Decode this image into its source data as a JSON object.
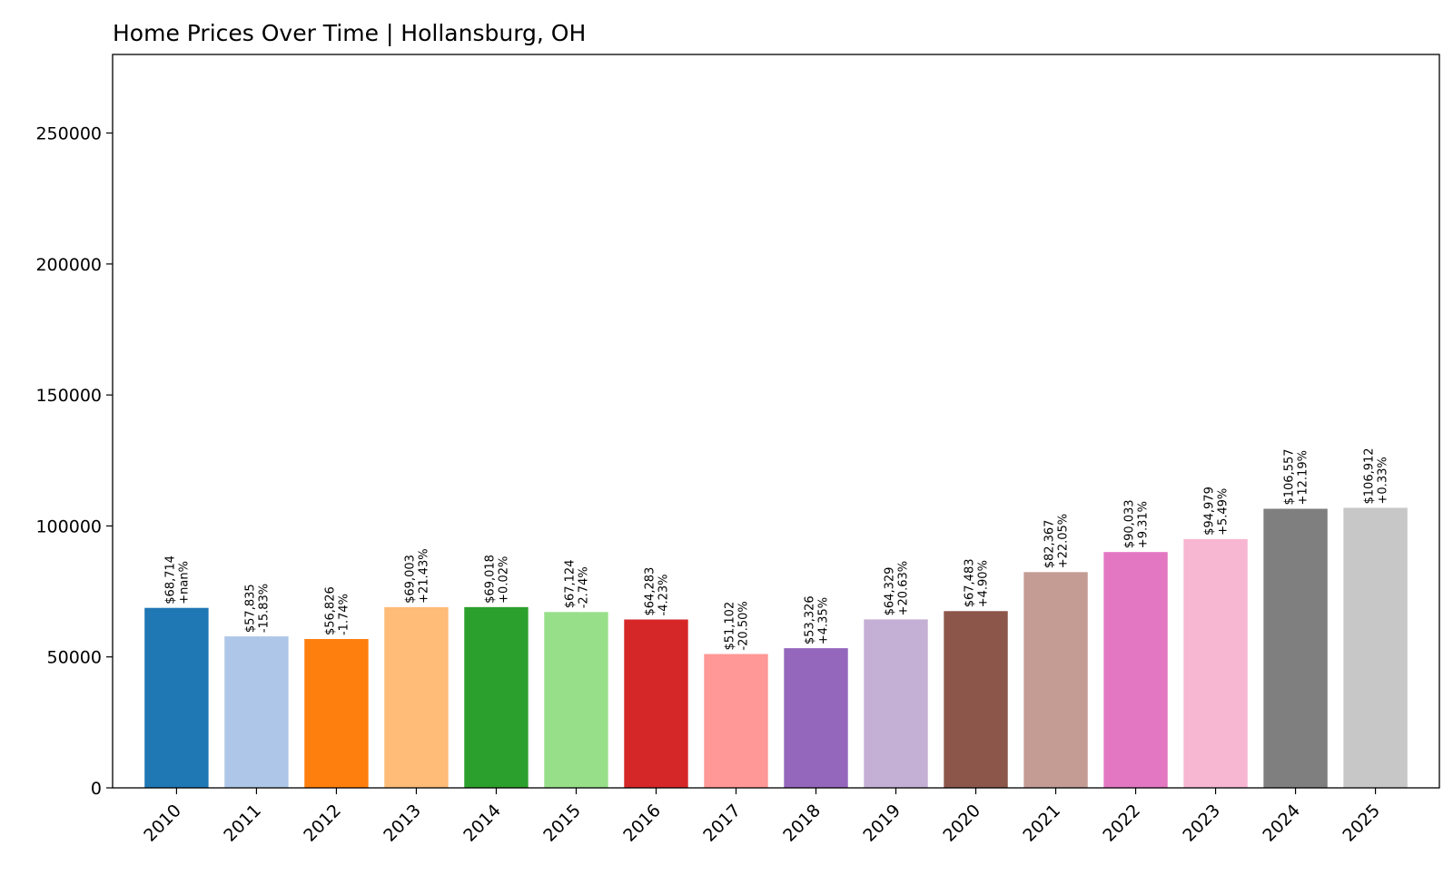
{
  "chart_data": {
    "type": "bar",
    "title": "Home Prices Over Time | Hollansburg, OH",
    "xlabel": "",
    "ylabel": "",
    "ylim": [
      0,
      280000
    ],
    "yticks": [
      0,
      50000,
      100000,
      150000,
      200000,
      250000
    ],
    "ytick_labels": [
      "0",
      "50000",
      "100000",
      "150000",
      "200000",
      "250000"
    ],
    "grid": false,
    "legend": false,
    "categories": [
      "2010",
      "2011",
      "2012",
      "2013",
      "2014",
      "2015",
      "2016",
      "2017",
      "2018",
      "2019",
      "2020",
      "2021",
      "2022",
      "2023",
      "2024",
      "2025"
    ],
    "values": [
      68714,
      57835,
      56826,
      69003,
      69018,
      67124,
      64283,
      51102,
      53326,
      64329,
      67483,
      82367,
      90033,
      94979,
      106557,
      106912
    ],
    "price_labels": [
      "$68,714",
      "$57,835",
      "$56,826",
      "$69,003",
      "$69,018",
      "$67,124",
      "$64,283",
      "$51,102",
      "$53,326",
      "$64,329",
      "$67,483",
      "$82,367",
      "$90,033",
      "$94,979",
      "$106,557",
      "$106,912"
    ],
    "change_labels": [
      "+nan%",
      "-15.83%",
      "-1.74%",
      "+21.43%",
      "+0.02%",
      "-2.74%",
      "-4.23%",
      "-20.50%",
      "+4.35%",
      "+20.63%",
      "+4.90%",
      "+22.05%",
      "+9.31%",
      "+5.49%",
      "+12.19%",
      "+0.33%"
    ],
    "colors": [
      "#1f77b4",
      "#aec7e8",
      "#ff7f0e",
      "#ffbb78",
      "#2ca02c",
      "#98df8a",
      "#d62728",
      "#ff9896",
      "#9467bd",
      "#c5b0d5",
      "#8c564b",
      "#c49c94",
      "#e377c2",
      "#f7b6d2",
      "#7f7f7f",
      "#c7c7c7"
    ]
  }
}
